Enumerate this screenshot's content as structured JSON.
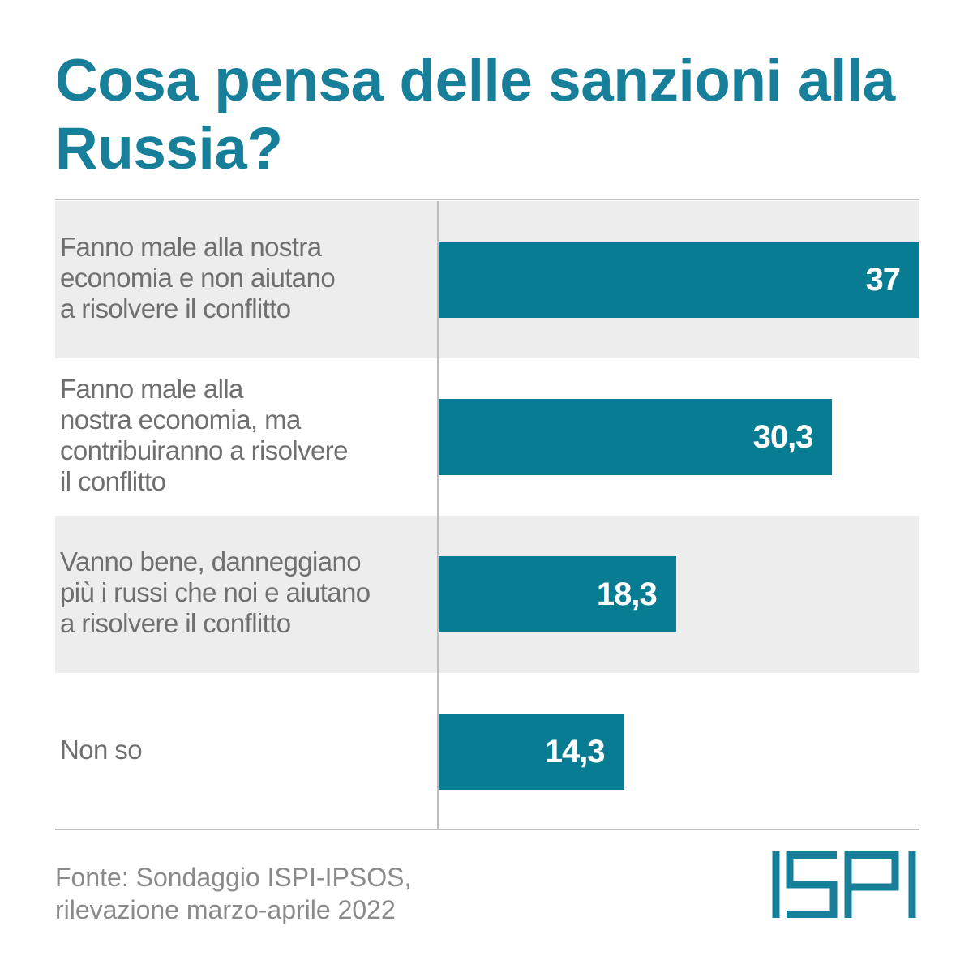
{
  "chart_data": {
    "type": "bar",
    "orientation": "horizontal",
    "title": "Cosa pensa delle sanzioni alla Russia?",
    "categories": [
      "Fanno male alla nostra economia e non aiutano a risolvere il conflitto",
      "Fanno male alla nostra economia, ma contribuiranno a risolvere il conflitto",
      "Vanno bene, danneggiano più i russi che noi e aiutano a risolvere il conflitto",
      "Non so"
    ],
    "category_lines": [
      [
        "Fanno male alla nostra",
        "economia e non aiutano",
        "a risolvere il conflitto"
      ],
      [
        "Fanno male alla",
        "nostra economia, ma",
        "contribuiranno a risolvere",
        "il conflitto"
      ],
      [
        "Vanno bene, danneggiano",
        "più i russi che noi e aiutano",
        "a risolvere il conflitto"
      ],
      [
        "Non so"
      ]
    ],
    "values": [
      37,
      30.3,
      18.3,
      14.3
    ],
    "value_labels": [
      "37",
      "30,3",
      "18,3",
      "14,3"
    ],
    "xlim": [
      0,
      37
    ],
    "bar_color": "#087c93",
    "row_shading": "alternating"
  },
  "footer": {
    "source_lines": [
      "Fonte: Sondaggio ISPI-IPSOS,",
      "rilevazione marzo-aprile 2022"
    ],
    "logo_text": "ISPI",
    "logo_color": "#177f99"
  }
}
